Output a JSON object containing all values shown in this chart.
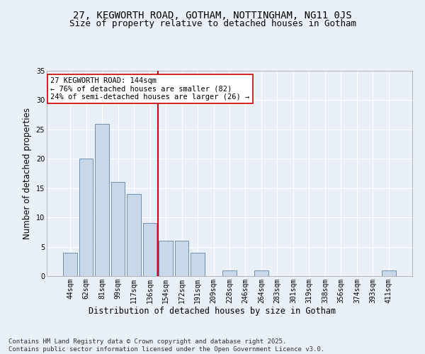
{
  "title1": "27, KEGWORTH ROAD, GOTHAM, NOTTINGHAM, NG11 0JS",
  "title2": "Size of property relative to detached houses in Gotham",
  "xlabel": "Distribution of detached houses by size in Gotham",
  "ylabel": "Number of detached properties",
  "categories": [
    "44sqm",
    "62sqm",
    "81sqm",
    "99sqm",
    "117sqm",
    "136sqm",
    "154sqm",
    "172sqm",
    "191sqm",
    "209sqm",
    "228sqm",
    "246sqm",
    "264sqm",
    "283sqm",
    "301sqm",
    "319sqm",
    "338sqm",
    "356sqm",
    "374sqm",
    "393sqm",
    "411sqm"
  ],
  "values": [
    4,
    20,
    26,
    16,
    14,
    9,
    6,
    6,
    4,
    0,
    1,
    0,
    1,
    0,
    0,
    0,
    0,
    0,
    0,
    0,
    1
  ],
  "bar_color": "#c8d8e8",
  "bar_edge_color": "#7090b0",
  "ref_line_x": 5.5,
  "ref_line_color": "#cc0000",
  "annotation_text": "27 KEGWORTH ROAD: 144sqm\n← 76% of detached houses are smaller (82)\n24% of semi-detached houses are larger (26) →",
  "annotation_box_color": "#ffffff",
  "annotation_box_edge": "#cc0000",
  "ylim": [
    0,
    35
  ],
  "yticks": [
    0,
    5,
    10,
    15,
    20,
    25,
    30,
    35
  ],
  "footer_text": "Contains HM Land Registry data © Crown copyright and database right 2025.\nContains public sector information licensed under the Open Government Licence v3.0.",
  "background_color": "#eaf0f8",
  "grid_color": "#ffffff",
  "title_fontsize": 10,
  "subtitle_fontsize": 9,
  "tick_fontsize": 7,
  "axis_label_fontsize": 8.5,
  "footer_fontsize": 6.5,
  "annotation_fontsize": 7.5
}
